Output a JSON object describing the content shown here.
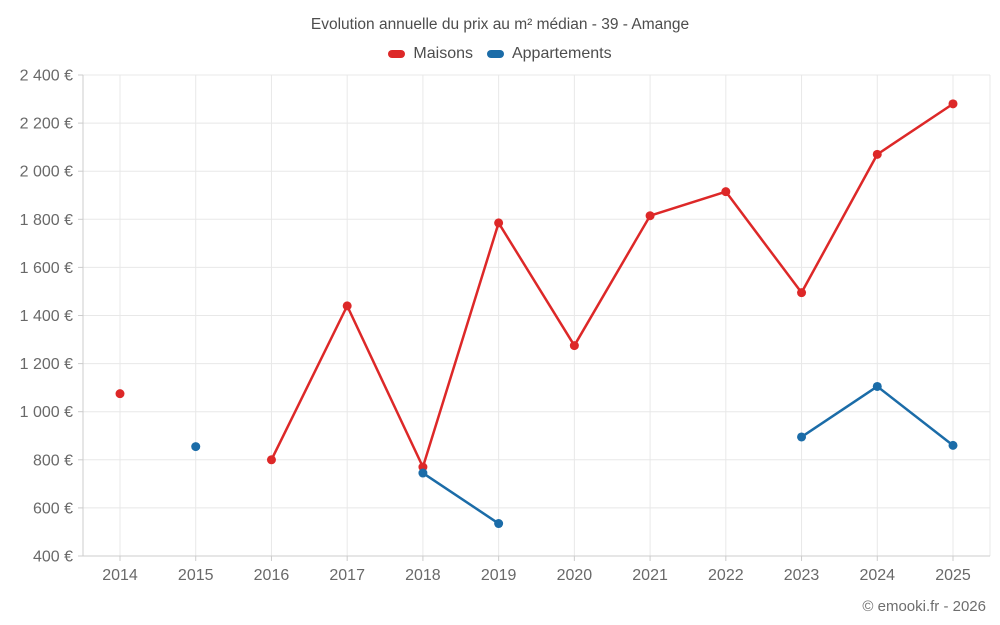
{
  "page": {
    "background": "#ffffff",
    "footer_credit": "© emooki.fr - 2026"
  },
  "chart_data": {
    "type": "line",
    "title": "Evolution annuelle du prix au m² médian - 39 - Amange",
    "x": [
      2014,
      2015,
      2016,
      2017,
      2018,
      2019,
      2020,
      2021,
      2022,
      2023,
      2024,
      2025
    ],
    "series": [
      {
        "name": "Maisons",
        "color": "#dd2828",
        "values": [
          1075,
          null,
          800,
          1440,
          770,
          1785,
          1275,
          1815,
          1915,
          1495,
          2070,
          2280
        ]
      },
      {
        "name": "Appartements",
        "color": "#1b6ca8",
        "values": [
          null,
          855,
          null,
          null,
          745,
          535,
          null,
          null,
          null,
          895,
          1105,
          860
        ]
      }
    ],
    "ylim": [
      400,
      2400
    ],
    "y_ticks": [
      400,
      600,
      800,
      1000,
      1200,
      1400,
      1600,
      1800,
      2000,
      2200,
      2400
    ],
    "y_tick_labels": [
      "400 €",
      "600 €",
      "800 €",
      "1 000 €",
      "1 200 €",
      "1 400 €",
      "1 600 €",
      "1 800 €",
      "2 000 €",
      "2 200 €",
      "2 400 €"
    ],
    "xlabel": "",
    "ylabel": "",
    "grid": true,
    "legend_position": "top",
    "grid_color": "#e8e8e8",
    "axis_color": "#cccccc",
    "tick_label_color": "#696969"
  }
}
